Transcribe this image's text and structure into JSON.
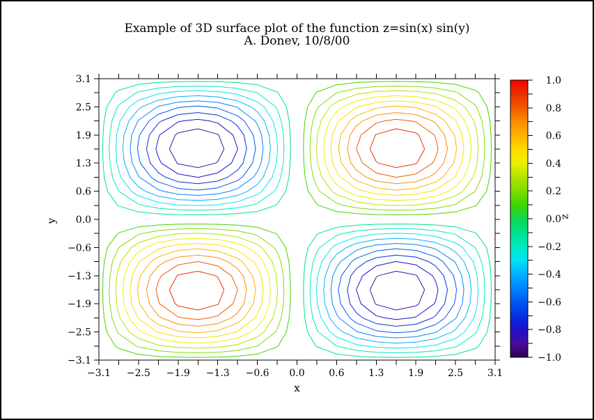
{
  "window": {
    "background": "#ffffff",
    "border_color": "#000000",
    "axis_color": "#000000"
  },
  "chart_data": {
    "type": "contour",
    "title": "Example of 3D surface plot of the function z=sin(x) sin(y)",
    "subtitle": "A. Donev, 10/8/00",
    "function": "sin(x)*sin(y)",
    "xlabel": "x",
    "ylabel": "y",
    "zlabel": "z",
    "x_range": [
      -3.1,
      3.1
    ],
    "y_range": [
      -3.1,
      3.1
    ],
    "z_range": [
      -1.0,
      1.0
    ],
    "grid_points": 21,
    "levels": [
      -0.9,
      -0.8,
      -0.7,
      -0.6,
      -0.5,
      -0.4,
      -0.3,
      -0.2,
      -0.1,
      0.1,
      0.2,
      0.3,
      0.4,
      0.5,
      0.6,
      0.7,
      0.8,
      0.9
    ],
    "x_tick_labels": [
      "−3.1",
      "−2.5",
      "−1.9",
      "−1.3",
      "−0.6",
      "0.0",
      "0.6",
      "1.3",
      "1.9",
      "2.5",
      "3.1"
    ],
    "y_tick_labels": [
      "−3.1",
      "−2.5",
      "−1.9",
      "−1.3",
      "−0.6",
      "0.0",
      "0.6",
      "1.3",
      "1.9",
      "2.5",
      "3.1"
    ],
    "colorbar_tick_labels": [
      "1.0",
      "0.8",
      "0.6",
      "0.4",
      "0.2",
      "0.0",
      "−0.2",
      "−0.4",
      "−0.6",
      "−0.8",
      "−1.0"
    ],
    "colormap": [
      {
        "z": -1.0,
        "color": "#2f0053"
      },
      {
        "z": -0.9,
        "color": "#470e9e"
      },
      {
        "z": -0.8,
        "color": "#1e10c8"
      },
      {
        "z": -0.7,
        "color": "#0531e0"
      },
      {
        "z": -0.6,
        "color": "#0057f2"
      },
      {
        "z": -0.5,
        "color": "#0084ff"
      },
      {
        "z": -0.4,
        "color": "#00b0ff"
      },
      {
        "z": -0.3,
        "color": "#00e2f8"
      },
      {
        "z": -0.2,
        "color": "#00e9c0"
      },
      {
        "z": -0.1,
        "color": "#00e18a"
      },
      {
        "z": 0.0,
        "color": "#0ed650"
      },
      {
        "z": 0.1,
        "color": "#3fd600"
      },
      {
        "z": 0.2,
        "color": "#7edd00"
      },
      {
        "z": 0.3,
        "color": "#b3e300"
      },
      {
        "z": 0.4,
        "color": "#eaf000"
      },
      {
        "z": 0.5,
        "color": "#ffdb00"
      },
      {
        "z": 0.6,
        "color": "#ffb200"
      },
      {
        "z": 0.7,
        "color": "#fb8d00"
      },
      {
        "z": 0.8,
        "color": "#f25900"
      },
      {
        "z": 0.9,
        "color": "#ea3100"
      },
      {
        "z": 1.0,
        "color": "#f60000"
      }
    ]
  }
}
